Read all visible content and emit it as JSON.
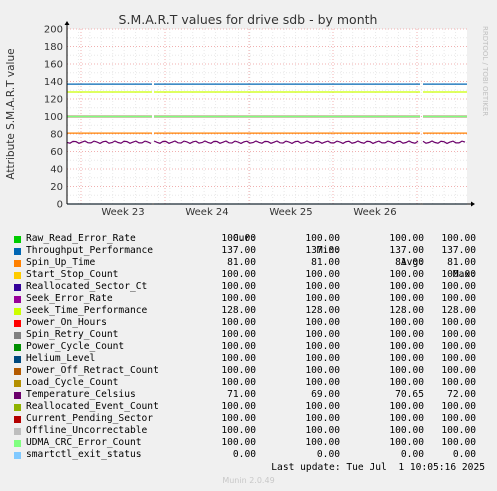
{
  "chart_data": {
    "type": "line",
    "title": "S.M.A.R.T values for drive sdb - by month",
    "ylabel": "Attribute S.M.A.R.T value",
    "xlabel": "",
    "ylim": [
      0,
      200
    ],
    "yticks": [
      "0",
      "20",
      "40",
      "60",
      "80",
      "100",
      "120",
      "140",
      "160",
      "180",
      "200"
    ],
    "xticks": [
      "Week 23",
      "Week 24",
      "Week 25",
      "Week 26"
    ],
    "watermark": "RRDTOOL / TOBI OETIKER",
    "grid": true,
    "legend_headers": {
      "cur": "Cur:",
      "min": "Min:",
      "avg": "Avg:",
      "max": "Max:"
    },
    "series": [
      {
        "name": "Raw_Read_Error_Rate",
        "color": "#00cc00",
        "cur": "100.00",
        "min": "100.00",
        "avg": "100.00",
        "max": "100.00"
      },
      {
        "name": "Throughput_Performance",
        "color": "#0066b3",
        "cur": "137.00",
        "min": "137.00",
        "avg": "137.00",
        "max": "137.00"
      },
      {
        "name": "Spin_Up_Time",
        "color": "#ff8000",
        "cur": "81.00",
        "min": "81.00",
        "avg": "81.00",
        "max": "81.00"
      },
      {
        "name": "Start_Stop_Count",
        "color": "#ffcc00",
        "cur": "100.00",
        "min": "100.00",
        "avg": "100.00",
        "max": "100.00"
      },
      {
        "name": "Reallocated_Sector_Ct",
        "color": "#330099",
        "cur": "100.00",
        "min": "100.00",
        "avg": "100.00",
        "max": "100.00"
      },
      {
        "name": "Seek_Error_Rate",
        "color": "#990099",
        "cur": "100.00",
        "min": "100.00",
        "avg": "100.00",
        "max": "100.00"
      },
      {
        "name": "Seek_Time_Performance",
        "color": "#ccff00",
        "cur": "128.00",
        "min": "128.00",
        "avg": "128.00",
        "max": "128.00"
      },
      {
        "name": "Power_On_Hours",
        "color": "#ff0000",
        "cur": "100.00",
        "min": "100.00",
        "avg": "100.00",
        "max": "100.00"
      },
      {
        "name": "Spin_Retry_Count",
        "color": "#808080",
        "cur": "100.00",
        "min": "100.00",
        "avg": "100.00",
        "max": "100.00"
      },
      {
        "name": "Power_Cycle_Count",
        "color": "#008f00",
        "cur": "100.00",
        "min": "100.00",
        "avg": "100.00",
        "max": "100.00"
      },
      {
        "name": "Helium_Level",
        "color": "#00487d",
        "cur": "100.00",
        "min": "100.00",
        "avg": "100.00",
        "max": "100.00"
      },
      {
        "name": "Power_Off_Retract_Count",
        "color": "#b35a00",
        "cur": "100.00",
        "min": "100.00",
        "avg": "100.00",
        "max": "100.00"
      },
      {
        "name": "Load_Cycle_Count",
        "color": "#b38f00",
        "cur": "100.00",
        "min": "100.00",
        "avg": "100.00",
        "max": "100.00"
      },
      {
        "name": "Temperature_Celsius",
        "color": "#6b006b",
        "cur": "71.00",
        "min": "69.00",
        "avg": "70.65",
        "max": "72.00"
      },
      {
        "name": "Reallocated_Event_Count",
        "color": "#8fb300",
        "cur": "100.00",
        "min": "100.00",
        "avg": "100.00",
        "max": "100.00"
      },
      {
        "name": "Current_Pending_Sector",
        "color": "#b30000",
        "cur": "100.00",
        "min": "100.00",
        "avg": "100.00",
        "max": "100.00"
      },
      {
        "name": "Offline_Uncorrectable",
        "color": "#bebebe",
        "cur": "100.00",
        "min": "100.00",
        "avg": "100.00",
        "max": "100.00"
      },
      {
        "name": "UDMA_CRC_Error_Count",
        "color": "#80ff80",
        "cur": "100.00",
        "min": "100.00",
        "avg": "100.00",
        "max": "100.00"
      },
      {
        "name": "smartctl_exit_status",
        "color": "#80c9ff",
        "cur": "0.00",
        "min": "0.00",
        "avg": "0.00",
        "max": "0.00"
      }
    ]
  },
  "footer": {
    "last_update": "Last update: Tue Jul  1 10:05:16 2025",
    "version": "Munin 2.0.49"
  }
}
